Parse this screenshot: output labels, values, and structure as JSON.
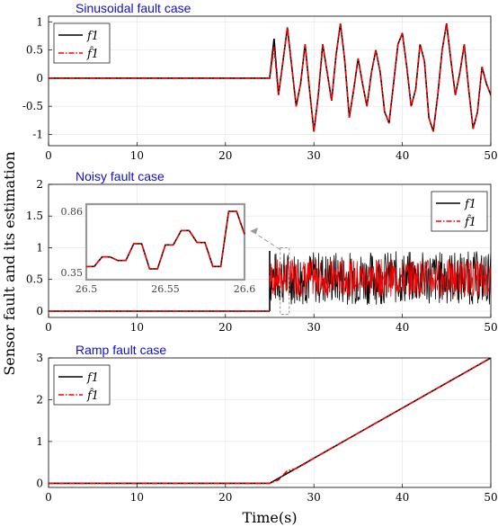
{
  "figure": {
    "ylabel": "Sensor fault and its estimation",
    "xlabel": "Time(s)"
  },
  "colors": {
    "true_signal": "#000000",
    "estimate": "#ff0000",
    "title": "#1010c8",
    "inset": "#999999"
  },
  "chart_data": [
    {
      "type": "line",
      "title": "Sinusoidal fault case",
      "xlim": [
        0,
        50
      ],
      "ylim": [
        -1.2,
        1.1
      ],
      "xticks": [
        0,
        10,
        20,
        30,
        40,
        50
      ],
      "yticks": [
        -1,
        -0.5,
        0,
        0.5,
        1
      ],
      "grid": true,
      "legend": {
        "placement": "top-left",
        "entries": [
          "f1",
          "f̂1"
        ]
      },
      "fault_onset": 25,
      "series": [
        {
          "name": "f1",
          "x": [
            0,
            25,
            25.5,
            26,
            26.5,
            27,
            27.5,
            28,
            28.5,
            29,
            29.5,
            30,
            30.5,
            31,
            31.5,
            32,
            32.5,
            33,
            33.5,
            34,
            34.5,
            35,
            35.5,
            36,
            36.5,
            37,
            37.5,
            38,
            38.5,
            39,
            39.5,
            40,
            40.5,
            41,
            41.5,
            42,
            42.5,
            43,
            43.5,
            44,
            44.5,
            45,
            45.5,
            46,
            46.5,
            47,
            47.5,
            48,
            48.5,
            49,
            49.5,
            50
          ],
          "y": [
            0,
            0,
            0.7,
            -0.3,
            0.3,
            0.9,
            0.2,
            -0.5,
            -0.1,
            0.6,
            -0.2,
            -0.95,
            -0.3,
            0.6,
            0.1,
            -0.4,
            0.4,
            0.97,
            0.3,
            -0.7,
            -0.2,
            0.35,
            -0.1,
            -0.5,
            0.1,
            0.5,
            0.1,
            -0.6,
            -0.8,
            -0.1,
            0.6,
            0.8,
            0.2,
            -0.5,
            -0.2,
            0.6,
            0.3,
            -0.7,
            -0.95,
            -0.3,
            0.5,
            0.97,
            0.3,
            -0.3,
            0.1,
            0.6,
            -0.2,
            -0.9,
            -0.6,
            0.2,
            -0.1,
            -0.3
          ]
        },
        {
          "name": "f̂1",
          "x": [
            0,
            25,
            25.5,
            26,
            26.5,
            27,
            27.5,
            28,
            28.5,
            29,
            29.5,
            30,
            30.5,
            31,
            31.5,
            32,
            32.5,
            33,
            33.5,
            34,
            34.5,
            35,
            35.5,
            36,
            36.5,
            37,
            37.5,
            38,
            38.5,
            39,
            39.5,
            40,
            40.5,
            41,
            41.5,
            42,
            42.5,
            43,
            43.5,
            44,
            44.5,
            45,
            45.5,
            46,
            46.5,
            47,
            47.5,
            48,
            48.5,
            49,
            49.5,
            50
          ],
          "y": [
            0,
            0,
            0.55,
            -0.3,
            0.3,
            0.9,
            0.2,
            -0.5,
            -0.1,
            0.6,
            -0.2,
            -0.95,
            -0.3,
            0.6,
            0.1,
            -0.4,
            0.4,
            0.97,
            0.3,
            -0.7,
            -0.2,
            0.35,
            -0.1,
            -0.5,
            0.1,
            0.5,
            0.1,
            -0.6,
            -0.8,
            -0.1,
            0.6,
            0.8,
            0.2,
            -0.5,
            -0.2,
            0.6,
            0.3,
            -0.7,
            -0.95,
            -0.3,
            0.5,
            0.97,
            0.3,
            -0.3,
            0.1,
            0.6,
            -0.2,
            -0.9,
            -0.6,
            0.2,
            -0.1,
            -0.3
          ]
        }
      ]
    },
    {
      "type": "line",
      "title": "Noisy fault case",
      "xlim": [
        0,
        50
      ],
      "ylim": [
        -0.1,
        2
      ],
      "xticks": [
        0,
        10,
        20,
        30,
        40,
        50
      ],
      "yticks": [
        0,
        0.5,
        1,
        1.5,
        2
      ],
      "grid": true,
      "legend": {
        "placement": "top-right",
        "entries": [
          "f1",
          "f̂1"
        ]
      },
      "fault_onset": 25,
      "noise_band": [
        0.1,
        0.95
      ],
      "series": [
        {
          "name": "f1",
          "x": [
            0,
            25
          ],
          "y": [
            0,
            0
          ]
        },
        {
          "name": "f̂1",
          "x": [
            0,
            25
          ],
          "y": [
            0,
            0
          ]
        }
      ],
      "inset": {
        "xlim": [
          26.5,
          26.6
        ],
        "ylim": [
          0.35,
          0.86
        ],
        "xticks": [
          26.5,
          26.55,
          26.6
        ],
        "yticks": [
          0.35,
          0.86
        ],
        "xtick_labels": [
          "26.5",
          "26.55",
          "26.6"
        ],
        "ytick_labels": [
          "0.35",
          "0.86"
        ],
        "x": [
          26.5,
          26.505,
          26.51,
          26.515,
          26.52,
          26.525,
          26.53,
          26.535,
          26.54,
          26.545,
          26.55,
          26.555,
          26.56,
          26.565,
          26.57,
          26.575,
          26.58,
          26.585,
          26.59,
          26.595,
          26.6
        ],
        "y": [
          0.4,
          0.4,
          0.48,
          0.48,
          0.45,
          0.45,
          0.59,
          0.59,
          0.38,
          0.38,
          0.58,
          0.58,
          0.7,
          0.7,
          0.6,
          0.6,
          0.4,
          0.4,
          0.86,
          0.86,
          0.67
        ]
      }
    },
    {
      "type": "line",
      "title": "Ramp fault case",
      "xlim": [
        0,
        50
      ],
      "ylim": [
        -0.1,
        3
      ],
      "xticks": [
        0,
        10,
        20,
        30,
        40,
        50
      ],
      "yticks": [
        0,
        1,
        2,
        3
      ],
      "grid": true,
      "legend": {
        "placement": "top-left",
        "entries": [
          "f1",
          "f̂1"
        ]
      },
      "fault_onset": 25,
      "series": [
        {
          "name": "f1",
          "x": [
            0,
            25,
            50
          ],
          "y": [
            0,
            0,
            3
          ]
        },
        {
          "name": "f̂1",
          "x": [
            0,
            25,
            26,
            27,
            28,
            29,
            30,
            50
          ],
          "y": [
            0,
            0,
            0.08,
            0.3,
            0.35,
            0.47,
            0.6,
            3
          ]
        }
      ]
    }
  ]
}
